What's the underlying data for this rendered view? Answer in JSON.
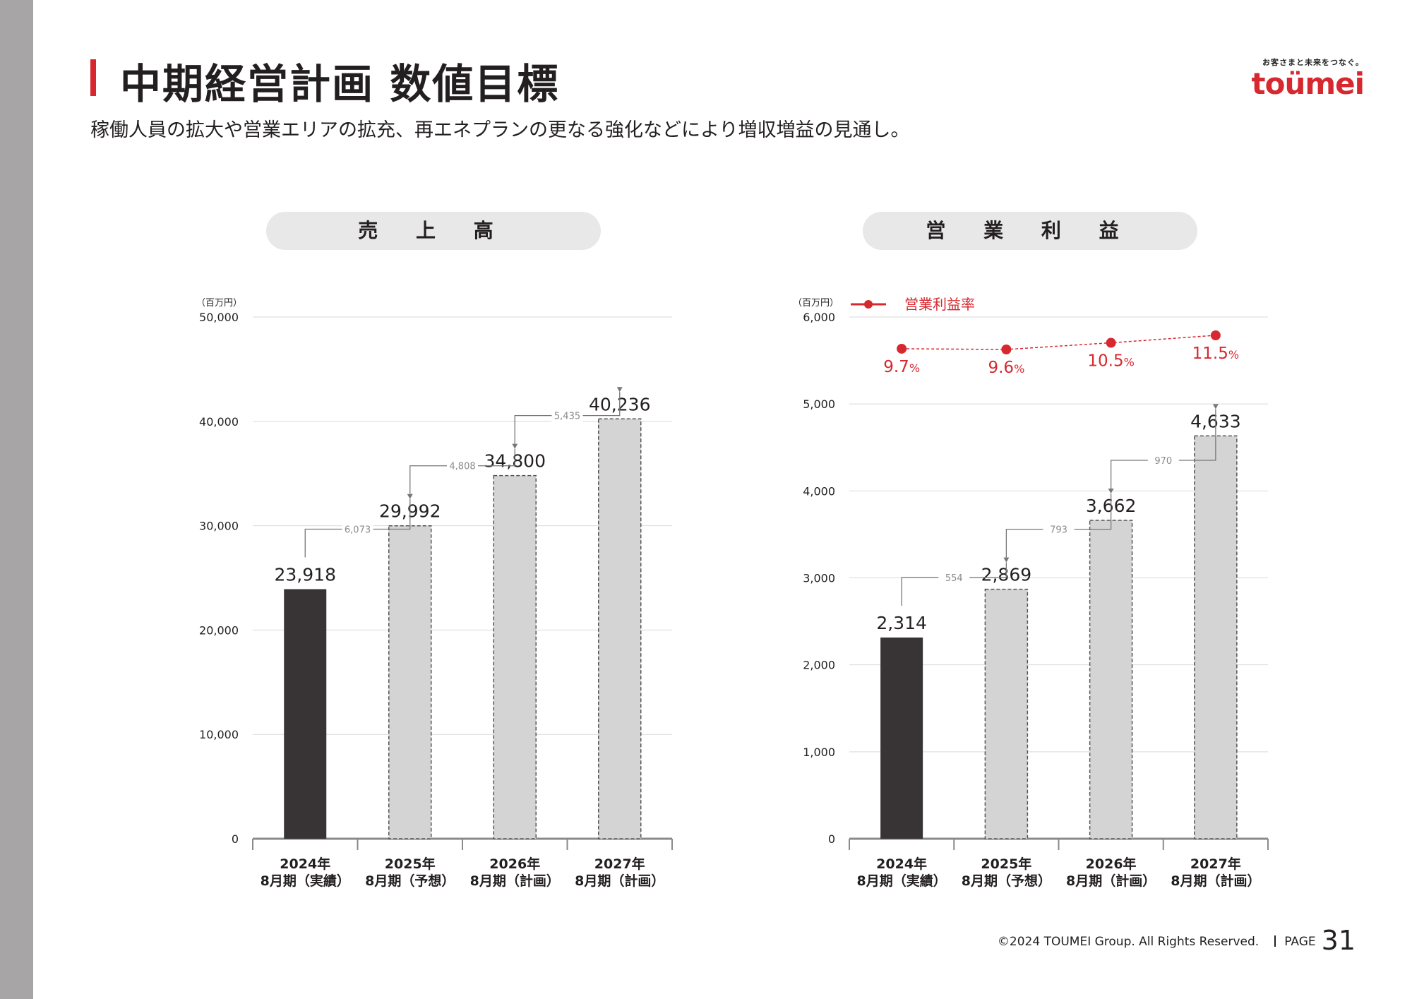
{
  "header": {
    "title": "中期経営計画 数値目標",
    "subtitle": "稼働人員の拡大や営業エリアの拡充、再エネプランの更なる強化などにより増収増益の見通し。"
  },
  "logo": {
    "tagline": "お客さまと未来をつなぐ。",
    "wordmark": "toümei"
  },
  "colors": {
    "accent": "#d7282f",
    "actual_bar": "#383435",
    "plan_bar": "#d4d4d4",
    "pill_bg": "#e8e8e8"
  },
  "footer": {
    "copyright": "©2024 TOUMEI Group. All Rights Reserved.",
    "page_label": "PAGE",
    "page_number": "31"
  },
  "chart_data": [
    {
      "type": "bar",
      "title": "売 上 高",
      "unit": "（百万円）",
      "categories": [
        "2024年\n8月期（実績）",
        "2025年\n8月期（予想）",
        "2026年\n8月期（計画）",
        "2027年\n8月期（計画）"
      ],
      "values": [
        23918,
        29992,
        34800,
        40236
      ],
      "value_labels": [
        "23,918",
        "29,992",
        "34,800",
        "40,236"
      ],
      "bar_styles": [
        "actual",
        "plan",
        "plan",
        "plan"
      ],
      "ylim": [
        0,
        50000
      ],
      "yticks": [
        0,
        10000,
        20000,
        30000,
        40000,
        50000
      ],
      "ytick_labels": [
        "0",
        "10,000",
        "20,000",
        "30,000",
        "40,000",
        "50,000"
      ],
      "increments": [
        "6,073",
        "4,808",
        "5,435"
      ],
      "grid": true
    },
    {
      "type": "bar",
      "title": "営 業 利 益",
      "unit": "（百万円）",
      "categories": [
        "2024年\n8月期（実績）",
        "2025年\n8月期（予想）",
        "2026年\n8月期（計画）",
        "2027年\n8月期（計画）"
      ],
      "values": [
        2314,
        2869,
        3662,
        4633
      ],
      "value_labels": [
        "2,314",
        "2,869",
        "3,662",
        "4,633"
      ],
      "bar_styles": [
        "actual",
        "plan",
        "plan",
        "plan"
      ],
      "ylim": [
        0,
        6000
      ],
      "yticks": [
        0,
        1000,
        2000,
        3000,
        4000,
        5000,
        6000
      ],
      "ytick_labels": [
        "0",
        "1,000",
        "2,000",
        "3,000",
        "4,000",
        "5,000",
        "6,000"
      ],
      "increments": [
        "554",
        "793",
        "970"
      ],
      "grid": true,
      "line_series": {
        "name": "営業利益率",
        "values": [
          9.7,
          9.6,
          10.5,
          11.5
        ],
        "value_labels": [
          "9.7",
          "9.6",
          "10.5",
          "11.5"
        ],
        "unit": "%",
        "legend_position": "top-left"
      }
    }
  ]
}
